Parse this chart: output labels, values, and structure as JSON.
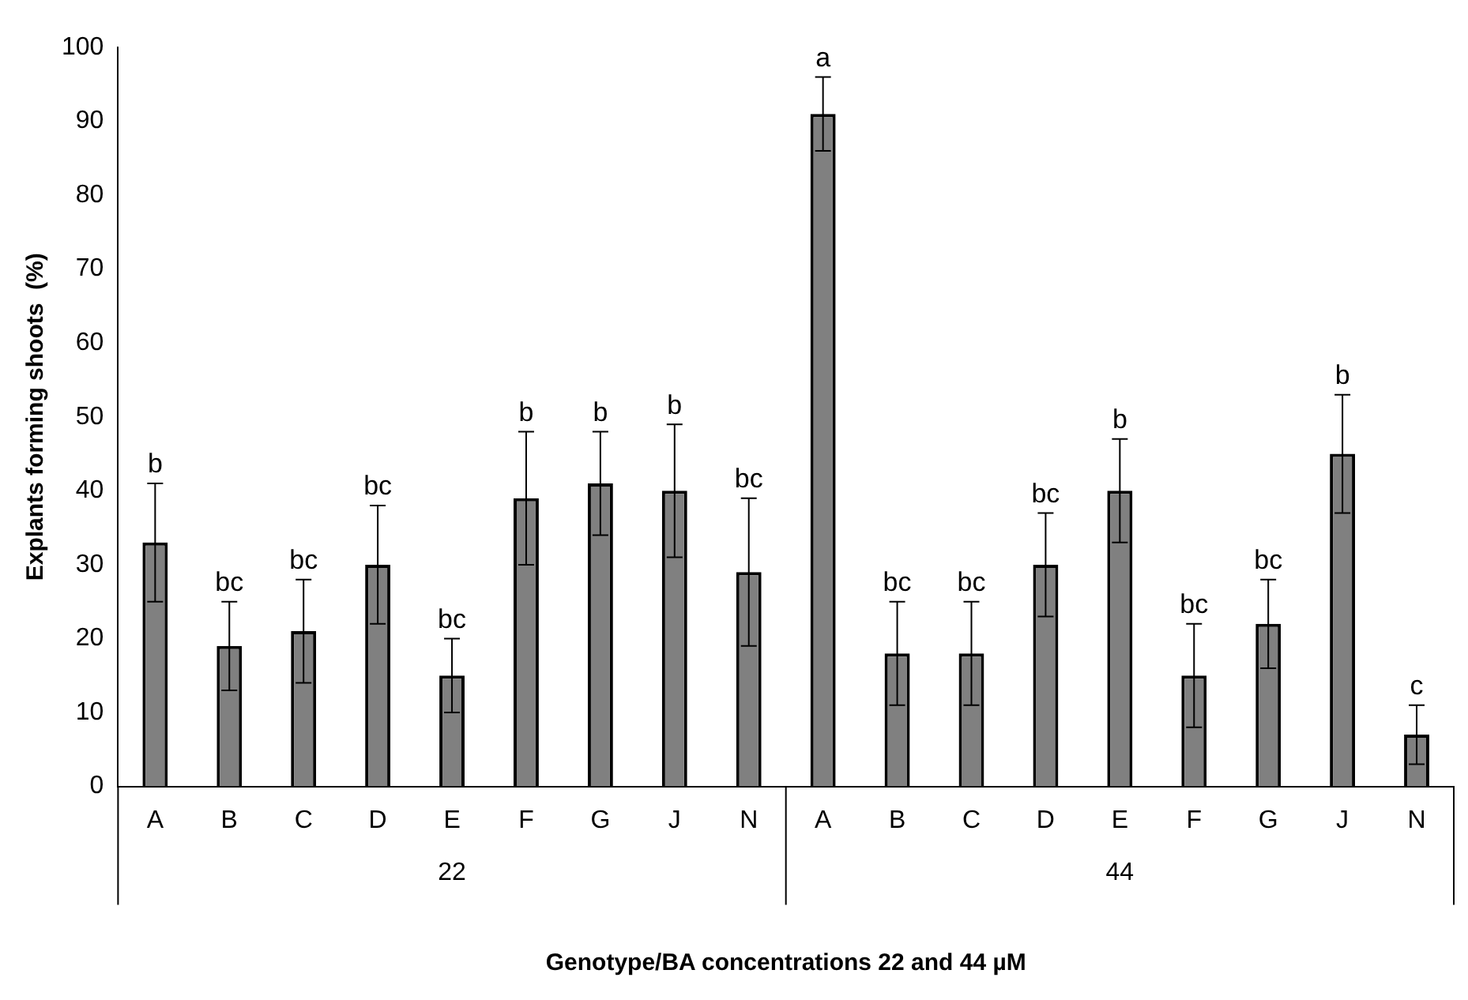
{
  "chart_data": {
    "type": "bar",
    "xlabel": "Genotype/BA concentrations 22 and 44 µM",
    "ylabel": "Explants forming shoots  (%)",
    "categories": [
      "A",
      "B",
      "C",
      "D",
      "E",
      "F",
      "G",
      "J",
      "N",
      "A",
      "B",
      "C",
      "D",
      "E",
      "F",
      "G",
      "J",
      "N"
    ],
    "values": [
      33,
      19,
      21,
      30,
      15,
      39,
      41,
      40,
      29,
      91,
      18,
      18,
      30,
      40,
      15,
      22,
      45,
      7
    ],
    "errors": [
      8,
      6,
      7,
      8,
      5,
      9,
      7,
      9,
      10,
      5,
      7,
      7,
      7,
      7,
      7,
      6,
      8,
      4
    ],
    "value_labels": [
      "b",
      "bc",
      "bc",
      "bc",
      "bc",
      "b",
      "b",
      "b",
      "bc",
      "a",
      "bc",
      "bc",
      "bc",
      "b",
      "bc",
      "bc",
      "b",
      "c"
    ],
    "color": "#808080",
    "annotations": [
      "22",
      "44"
    ],
    "ylim": [
      0,
      100
    ],
    "yticks": [
      0,
      10,
      20,
      30,
      40,
      50,
      60,
      70,
      80,
      90,
      100
    ],
    "grid": false,
    "legend": false
  }
}
